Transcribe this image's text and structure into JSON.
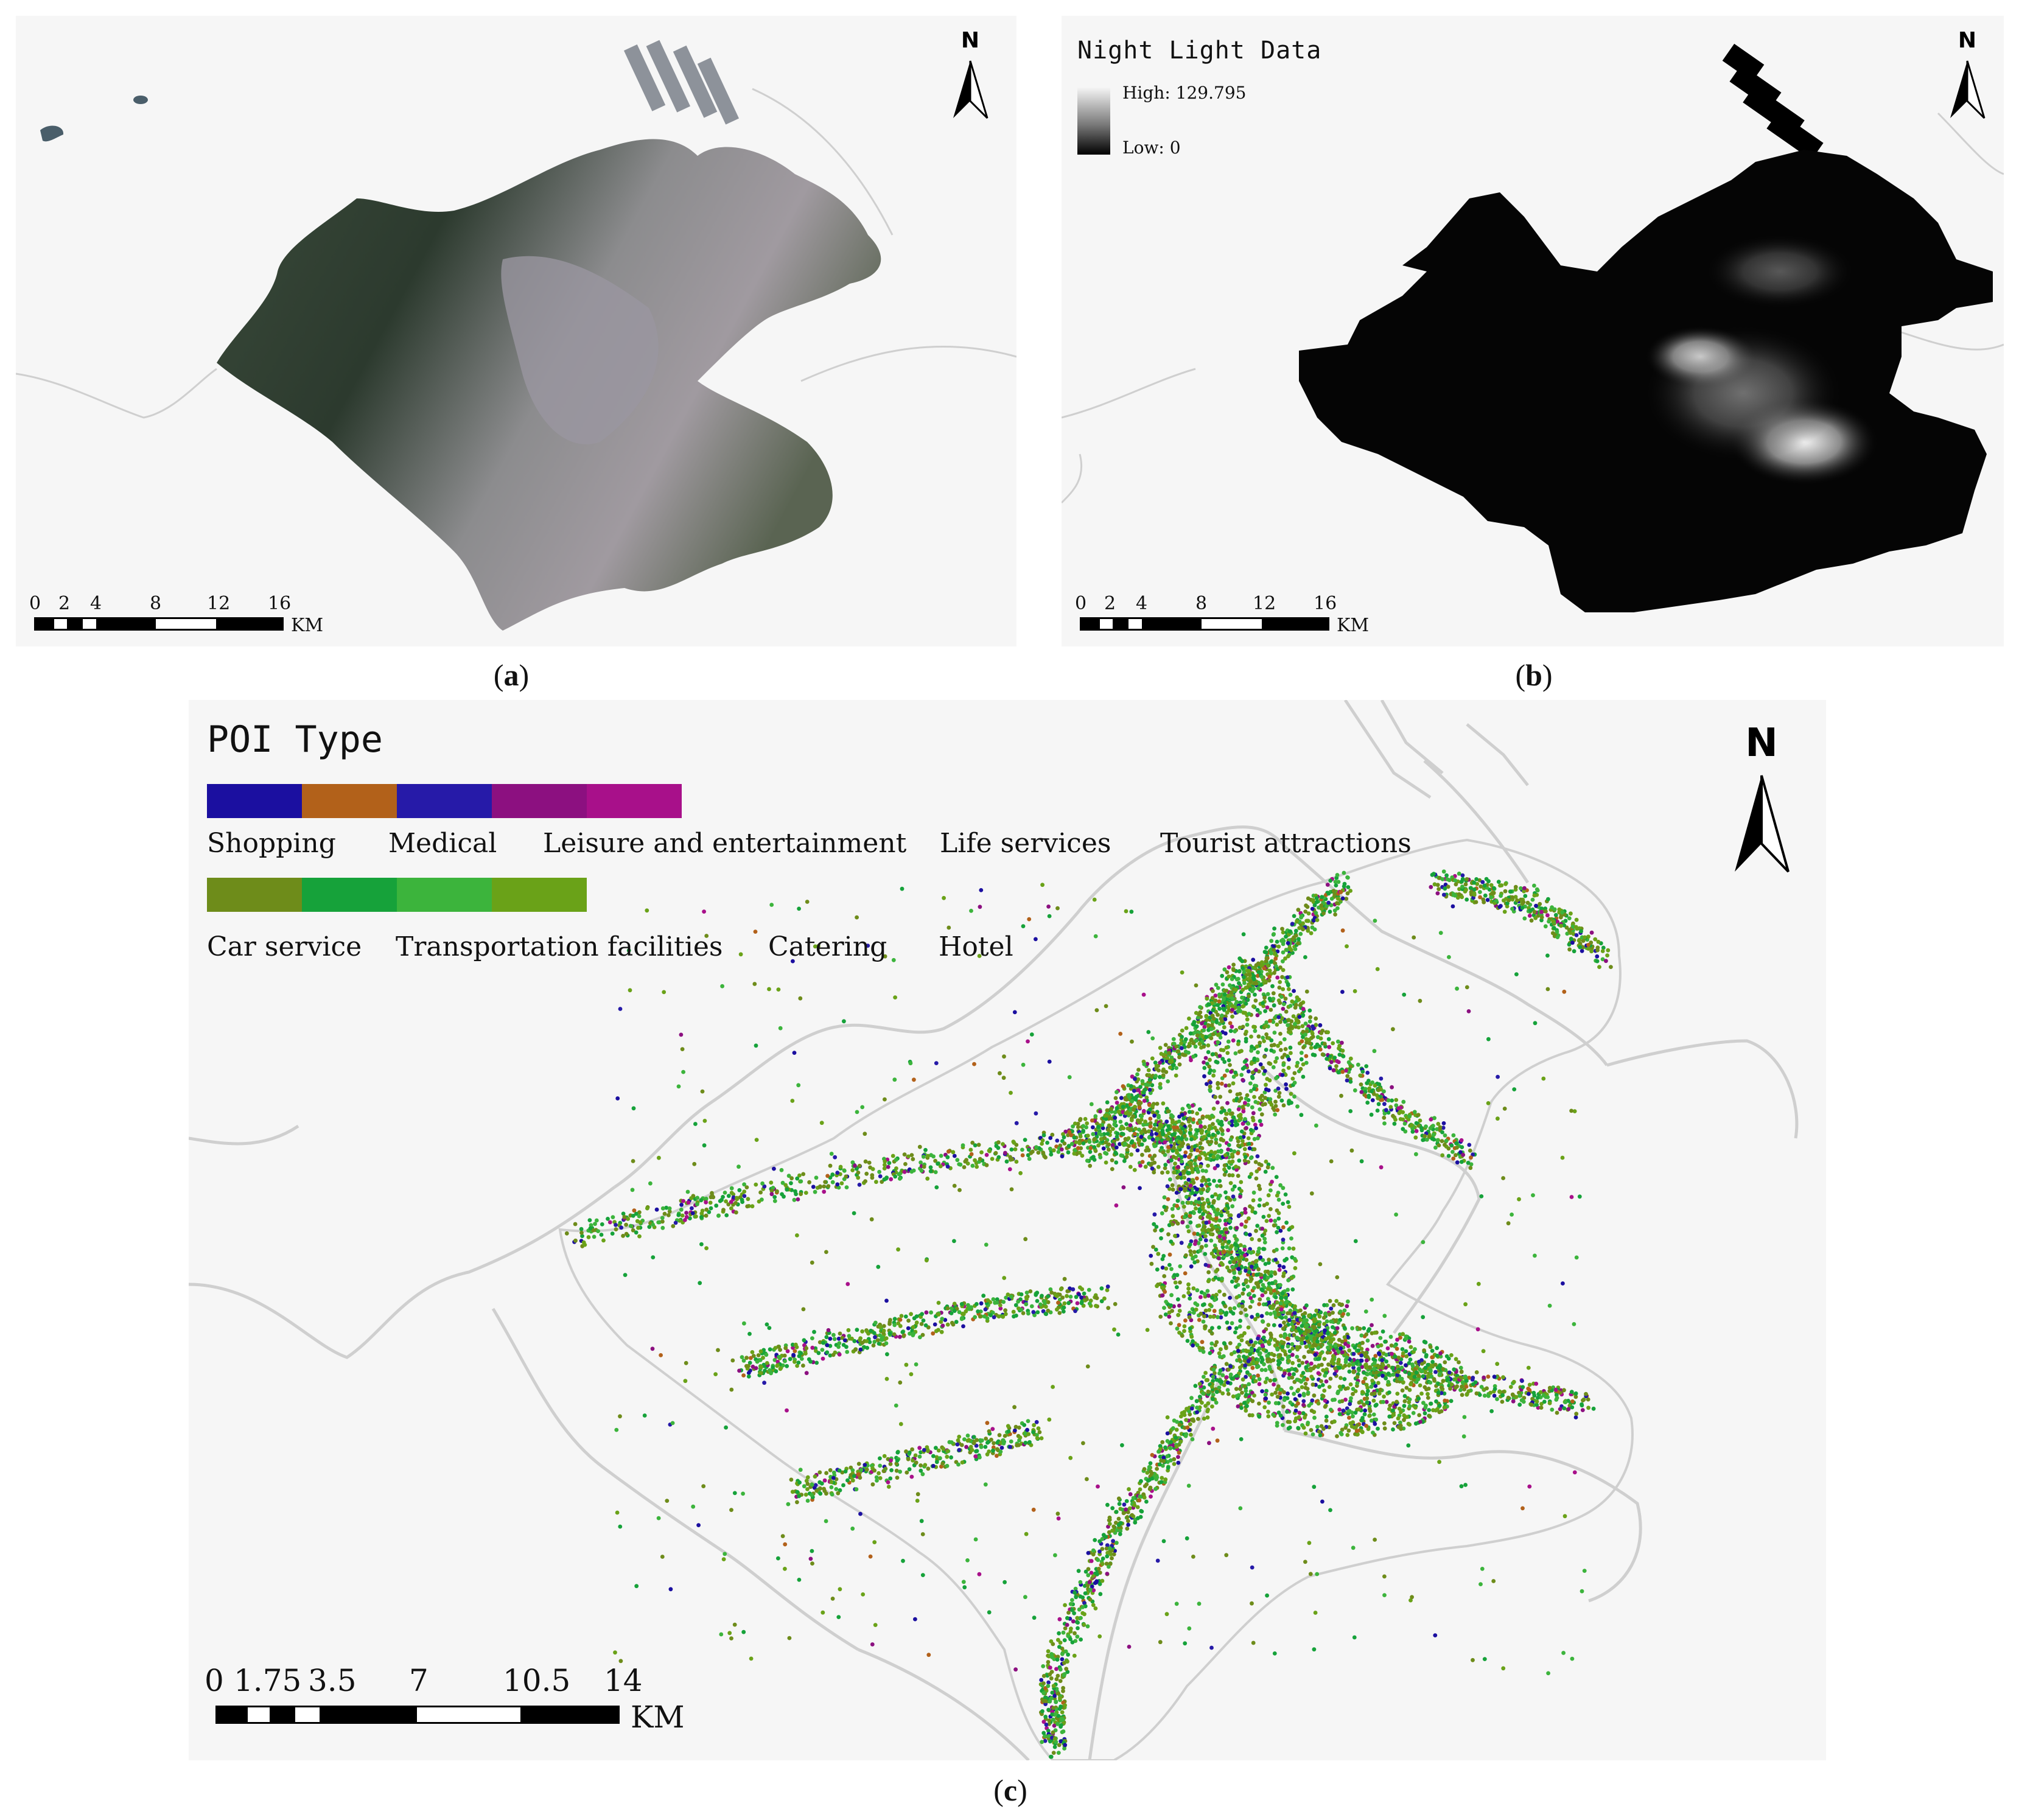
{
  "panels": {
    "a": {
      "caption": "a",
      "north_label": "N",
      "scale": {
        "ticks": [
          "0",
          "2",
          "4",
          "8",
          "12",
          "16"
        ],
        "unit": "KM"
      }
    },
    "b": {
      "caption": "b",
      "north_label": "N",
      "legend": {
        "title": "Night Light Data",
        "high": "High: 129.795",
        "low": "Low: 0",
        "high_value": 129.795,
        "low_value": 0
      },
      "scale": {
        "ticks": [
          "0",
          "2",
          "4",
          "8",
          "12",
          "16"
        ],
        "unit": "KM"
      }
    },
    "c": {
      "caption": "c",
      "north_label": "N",
      "legend": {
        "title": "POI Type",
        "row1_colors": [
          "#1b0fa0",
          "#b2611a",
          "#261aa8",
          "#8c1080",
          "#a8108a"
        ],
        "row1_labels": [
          "Shopping",
          "Medical",
          "Leisure and entertainment",
          "Life services",
          "Tourist attractions"
        ],
        "row2_colors": [
          "#6e8c1a",
          "#16a23a",
          "#3cb43c",
          "#6aa218"
        ],
        "row2_labels": [
          "Car service",
          "Transportation facilities",
          "Catering",
          "Hotel"
        ]
      },
      "scale": {
        "ticks": [
          "0",
          "1.75",
          "3.5",
          "7",
          "10.5",
          "14"
        ],
        "unit": "KM"
      }
    }
  },
  "colors": {
    "background": "#f6f6f6",
    "boundary": "#cfcfcf",
    "poi_dominant": "#4aa630"
  }
}
